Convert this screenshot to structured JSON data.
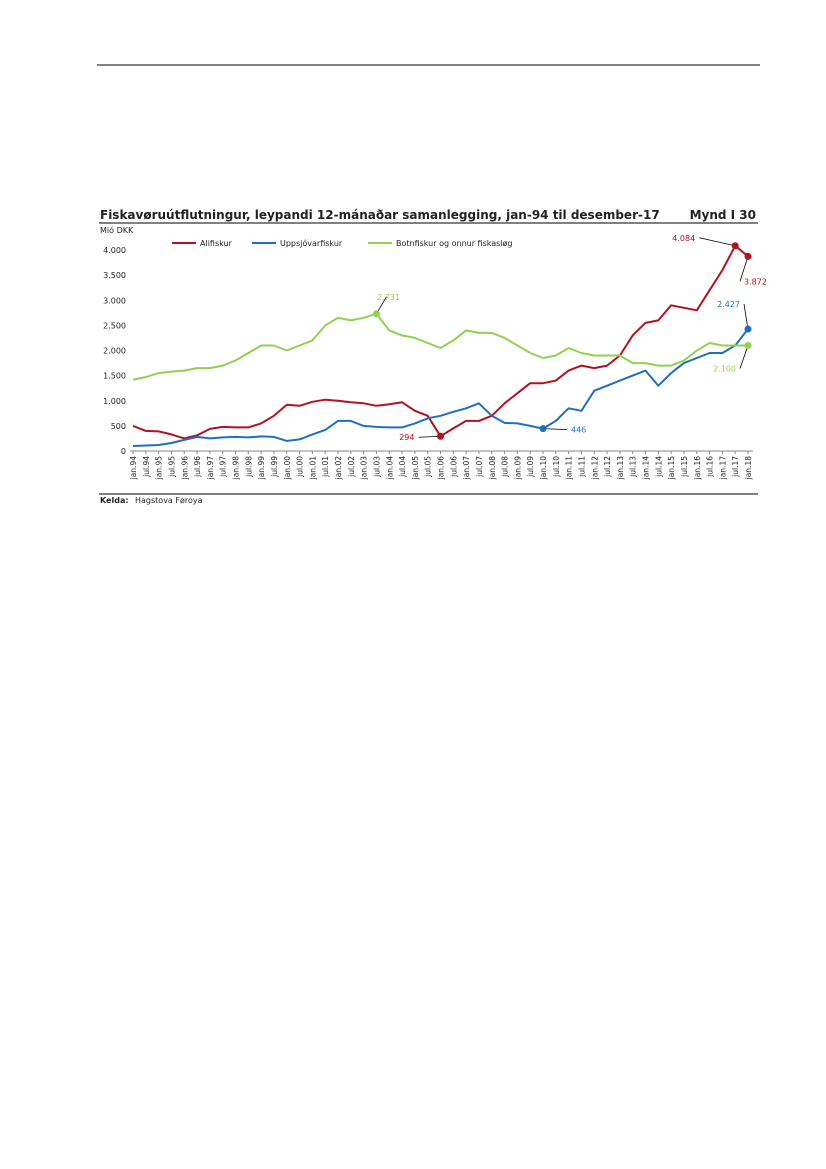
{
  "header": {},
  "chart_data": {
    "type": "line",
    "title": "Fiskavøruútflutningur, leypandi 12-mánaðar samanlegging, jan-94 til desember-17",
    "figure_label": "Mynd I 30",
    "y_label": "Mió DKK",
    "source_label": "Kelda:",
    "source": "Hagstova Føroya",
    "categories": [
      "jan.94",
      "jul.94",
      "jan.95",
      "jul.95",
      "jan.96",
      "jul.96",
      "jan.97",
      "jul.97",
      "jan.98",
      "jul.98",
      "jan.99",
      "jul.99",
      "jan.00",
      "jul.00",
      "jan.01",
      "jul.01",
      "jan.02",
      "jul.02",
      "jan.03",
      "jul.03",
      "jan.04",
      "jul.04",
      "jan.05",
      "jul.05",
      "jan.06",
      "jul.06",
      "jan.07",
      "jul.07",
      "jan.08",
      "jul.08",
      "jan.09",
      "jul.09",
      "jan.10",
      "jul.10",
      "jan.11",
      "jul.11",
      "jan.12",
      "jul.12",
      "jan.13",
      "jul.13",
      "jan.14",
      "jul.14",
      "jan.15",
      "jul.15",
      "jan.16",
      "jul.16",
      "jan.17",
      "jul.17",
      "jan.18"
    ],
    "ylim": [
      0,
      4300
    ],
    "yticks": [
      0,
      500,
      {
        "value": 1000,
        "label": "1.000"
      },
      {
        "value": 1500,
        "label": "1.500"
      },
      {
        "value": 2000,
        "label": "2.000"
      },
      {
        "value": 2500,
        "label": "2.500"
      },
      {
        "value": 3000,
        "label": "3.000"
      },
      {
        "value": 3500,
        "label": "3.500"
      },
      {
        "value": 4000,
        "label": "4.000"
      }
    ],
    "grid": false,
    "series": [
      {
        "name": "Alifiskur",
        "color": "#b3121d",
        "values": [
          500,
          400,
          390,
          330,
          250,
          310,
          440,
          480,
          470,
          470,
          550,
          700,
          920,
          900,
          980,
          1020,
          1000,
          970,
          950,
          900,
          930,
          970,
          800,
          700,
          294,
          450,
          600,
          600,
          700,
          950,
          1150,
          1350,
          1350,
          1400,
          1600,
          1700,
          1650,
          1700,
          1900,
          2300,
          2550,
          2600,
          2900,
          2850,
          2800,
          3200,
          3600,
          4084,
          3872
        ],
        "annotations": [
          {
            "x": "jul.17",
            "value": 4084,
            "label": "4.084"
          },
          {
            "x": "jan.18",
            "value": 3872,
            "label": "3.872"
          },
          {
            "x": "jan.06",
            "value": 294,
            "label": "294"
          }
        ]
      },
      {
        "name": "Uppsjóvarfiskur",
        "color": "#1f6fc0",
        "values": [
          100,
          110,
          120,
          160,
          220,
          280,
          250,
          270,
          280,
          270,
          290,
          280,
          200,
          230,
          330,
          420,
          600,
          600,
          500,
          480,
          470,
          470,
          550,
          650,
          700,
          780,
          850,
          950,
          700,
          560,
          550,
          500,
          446,
          600,
          850,
          800,
          1200,
          1300,
          1400,
          1500,
          1600,
          1300,
          1550,
          1750,
          1850,
          1950,
          1950,
          2100,
          2427
        ],
        "annotations": [
          {
            "x": "jan.10",
            "value": 446,
            "label": "446"
          },
          {
            "x": "jan.18",
            "value": 2427,
            "label": "2.427"
          }
        ]
      },
      {
        "name": "Botnfiskur og onnur fiskasløg",
        "color": "#92d050",
        "values": [
          1420,
          1470,
          1550,
          1580,
          1600,
          1650,
          1650,
          1700,
          1800,
          1950,
          2100,
          2100,
          2000,
          2100,
          2200,
          2500,
          2650,
          2600,
          2650,
          2731,
          2400,
          2300,
          2250,
          2150,
          2050,
          2200,
          2400,
          2350,
          2350,
          2250,
          2100,
          1950,
          1850,
          1900,
          2050,
          1950,
          1900,
          1900,
          1900,
          1750,
          1750,
          1700,
          1700,
          1800,
          2000,
          2150,
          2100,
          2100,
          2100
        ],
        "annotations": [
          {
            "x": "jul.03",
            "value": 2731,
            "label": "2.731"
          },
          {
            "x": "jan.18",
            "value": 2100,
            "label": "2.100"
          }
        ]
      }
    ]
  }
}
